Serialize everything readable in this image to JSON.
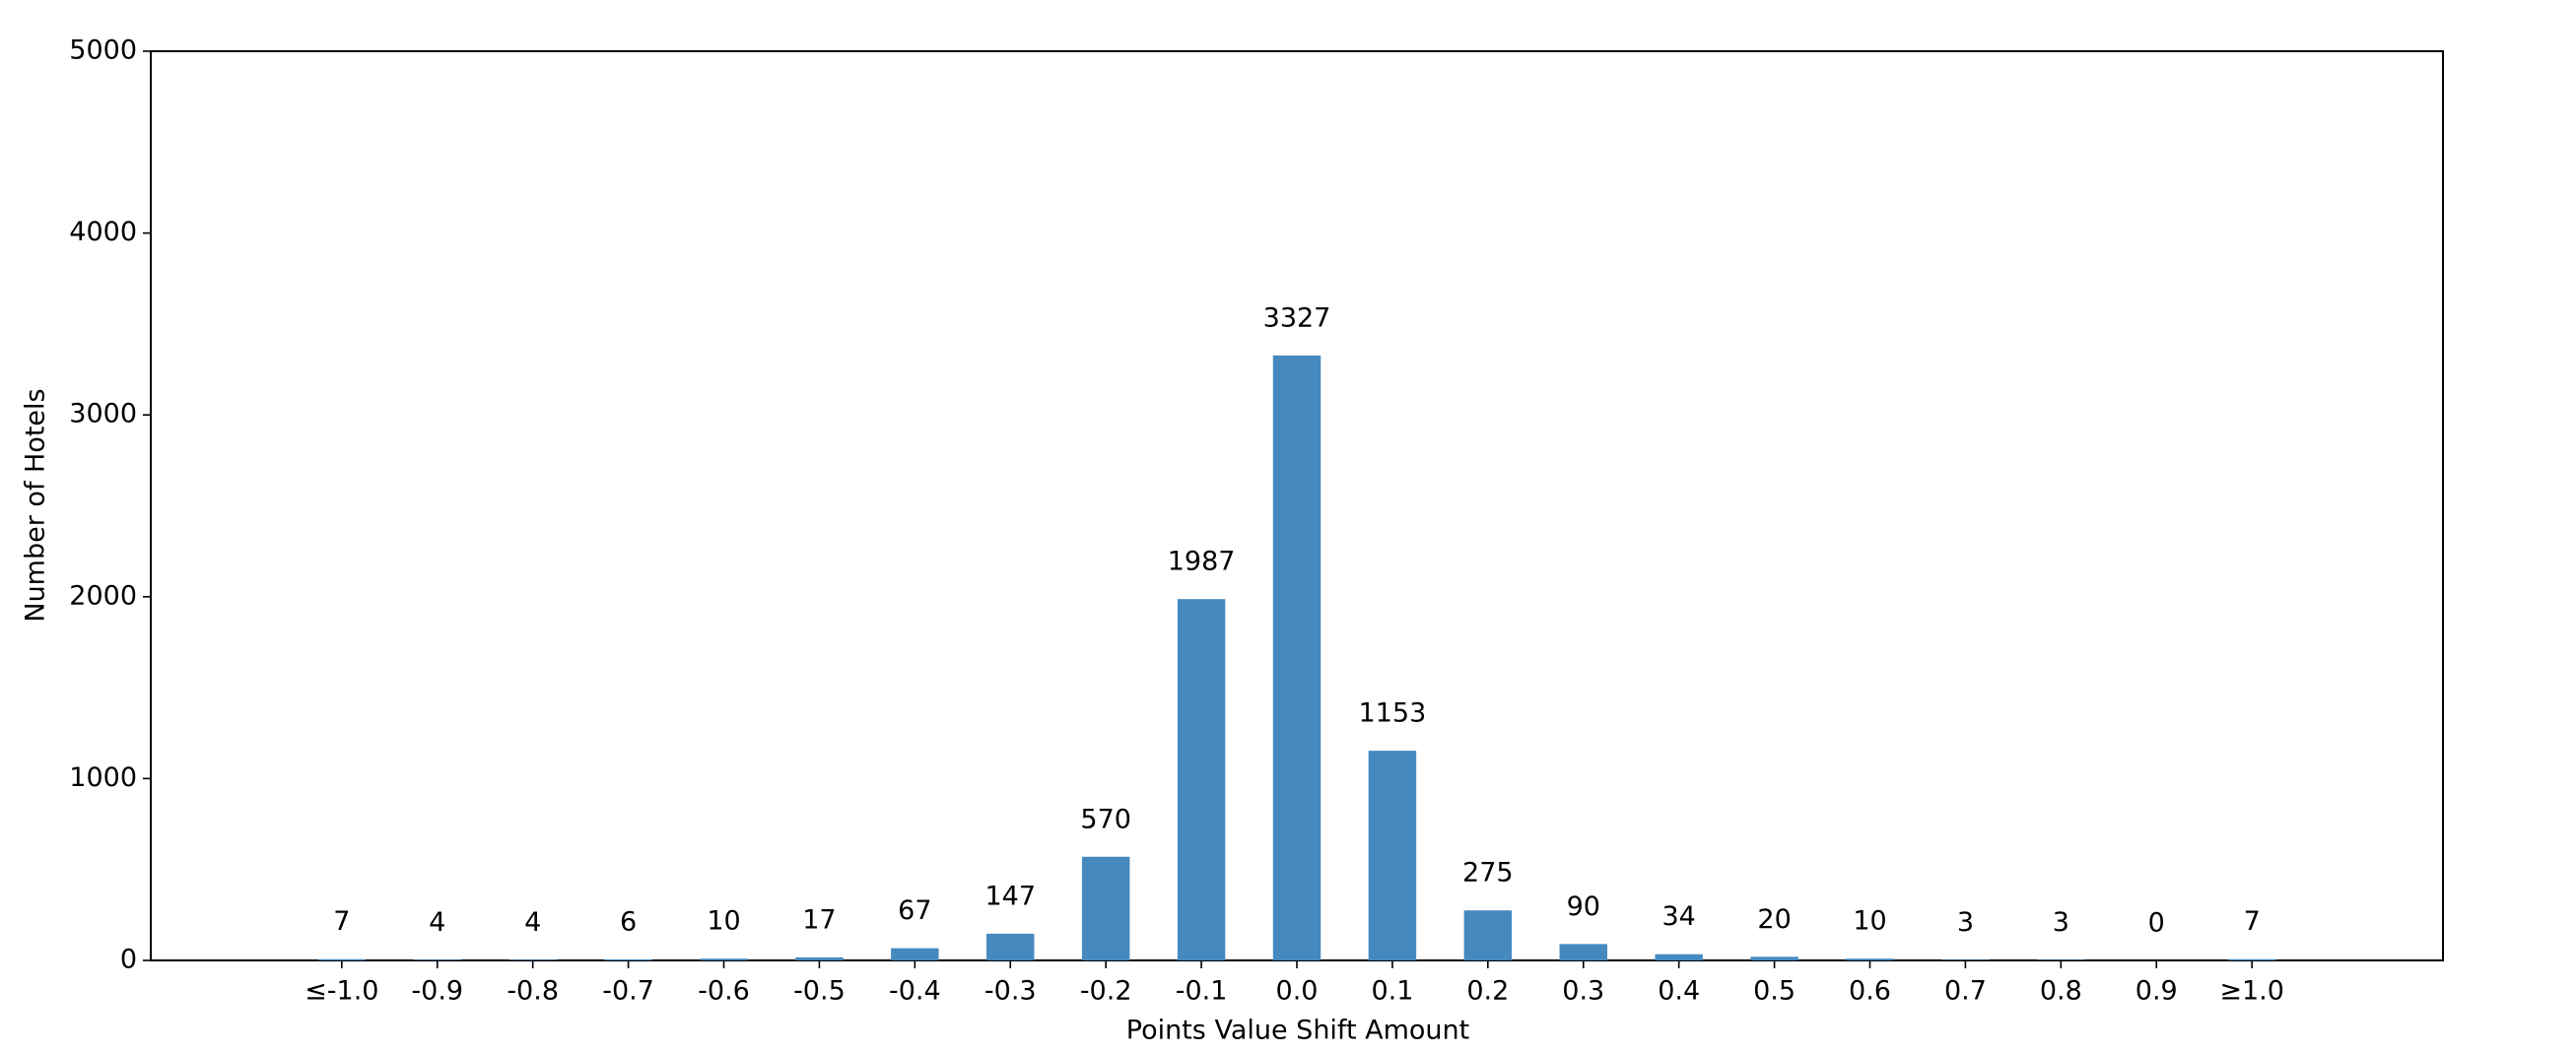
{
  "chart_data": {
    "type": "bar",
    "xlabel": "Points Value Shift Amount",
    "ylabel": "Number of Hotels",
    "categories": [
      "≤-1.0",
      "-0.9",
      "-0.8",
      "-0.7",
      "-0.6",
      "-0.5",
      "-0.4",
      "-0.3",
      "-0.2",
      "-0.1",
      "0.0",
      "0.1",
      "0.2",
      "0.3",
      "0.4",
      "0.5",
      "0.6",
      "0.7",
      "0.8",
      "0.9",
      "≥1.0"
    ],
    "values": [
      7,
      4,
      4,
      6,
      10,
      17,
      67,
      147,
      570,
      1987,
      3327,
      1153,
      275,
      90,
      34,
      20,
      10,
      3,
      3,
      0,
      7
    ],
    "color": "#4689bf",
    "ylim": [
      0,
      5000
    ],
    "yticks": [
      0,
      1000,
      2000,
      3000,
      4000,
      5000
    ],
    "grid": false
  }
}
